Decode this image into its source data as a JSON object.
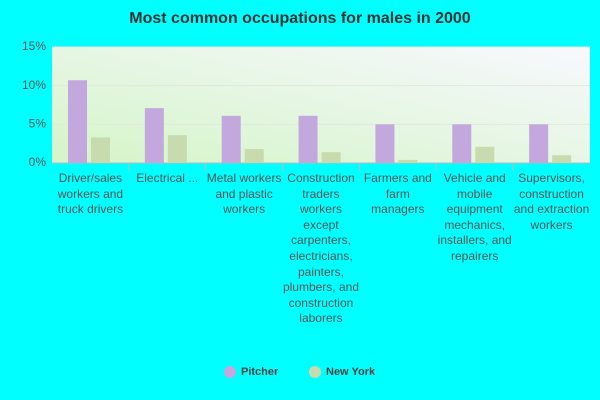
{
  "chart_data": {
    "type": "bar",
    "title": "Most common occupations for males in 2000",
    "categories": [
      "Driver/sales workers and truck drivers",
      "Electrical ...",
      "Metal workers and plastic workers",
      "Construction traders workers except carpenters, electricians, painters, plumbers, and construction laborers",
      "Farmers and farm managers",
      "Vehicle and mobile equipment mechanics, installers, and repairers",
      "Supervisors, construction and extraction workers"
    ],
    "series": [
      {
        "name": "Pitcher",
        "color": "#c3a8dd",
        "values": [
          10.7,
          7.1,
          6.1,
          6.1,
          5.0,
          5.0,
          5.0
        ]
      },
      {
        "name": "New York",
        "color": "#c8dbae",
        "values": [
          3.3,
          3.6,
          1.8,
          1.4,
          0.4,
          2.1,
          1.0
        ]
      }
    ],
    "ylim": [
      0,
      15
    ],
    "yticks": [
      {
        "value": 0,
        "label": "0%"
      },
      {
        "value": 5,
        "label": "5%"
      },
      {
        "value": 10,
        "label": "10%"
      },
      {
        "value": 15,
        "label": "15%"
      }
    ],
    "grid": true,
    "legend": "bottom"
  }
}
